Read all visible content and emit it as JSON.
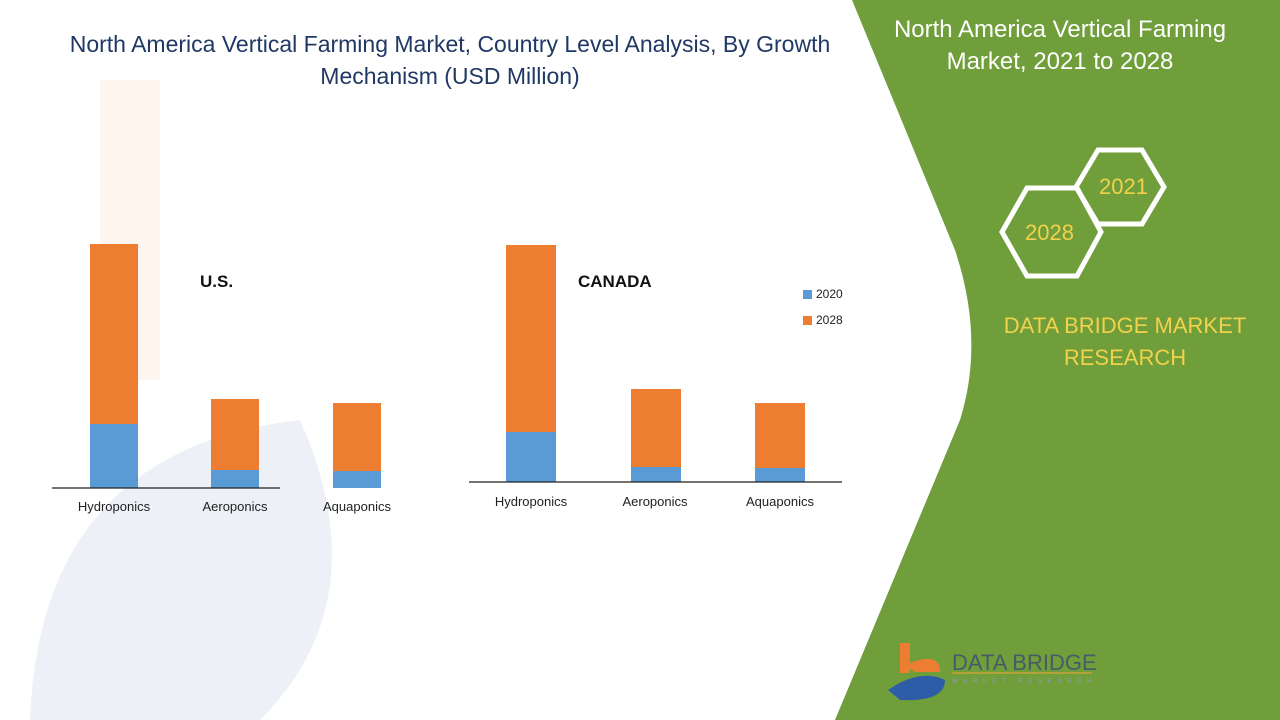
{
  "title": "North America Vertical Farming Market, Country Level Analysis, By Growth Mechanism (USD Million)",
  "side_panel": {
    "title": "North America Vertical Farming Market, 2021 to 2028",
    "hex_years": [
      "2021",
      "2028"
    ],
    "brand": "DATA BRIDGE MARKET RESEARCH",
    "logo_text": "DATA BRIDGE",
    "logo_sub": "MARKET RESEARCH",
    "color": "#6f9e3a"
  },
  "chart_data": [
    {
      "type": "bar",
      "stacked": true,
      "title": "U.S.",
      "categories": [
        "Hydroponics",
        "Aeroponics",
        "Aquaponics"
      ],
      "series": [
        {
          "name": "2020",
          "color": "#5b9bd5",
          "values": [
            64,
            18,
            17
          ]
        },
        {
          "name": "2028",
          "color": "#ed7d31",
          "values": [
            180,
            71,
            68
          ]
        }
      ],
      "ylim": [
        0,
        250
      ],
      "xlabel": "",
      "ylabel": ""
    },
    {
      "type": "bar",
      "stacked": true,
      "title": "CANADA",
      "categories": [
        "Hydroponics",
        "Aeroponics",
        "Aquaponics"
      ],
      "series": [
        {
          "name": "2020",
          "color": "#5b9bd5",
          "values": [
            50,
            15,
            14
          ]
        },
        {
          "name": "2028",
          "color": "#ed7d31",
          "values": [
            187,
            78,
            65
          ]
        }
      ],
      "ylim": [
        0,
        250
      ],
      "xlabel": "",
      "ylabel": "",
      "legend": [
        "2020",
        "2028"
      ],
      "legend_position": "right"
    }
  ]
}
